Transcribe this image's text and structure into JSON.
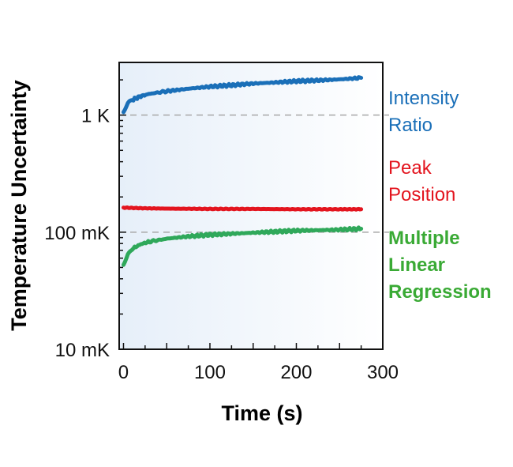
{
  "chart_data": {
    "type": "line",
    "title": "",
    "xlabel": "Time (s)",
    "ylabel": "Temperature Uncertainty",
    "xlim": [
      -5,
      300
    ],
    "ylim_log10_K": [
      -2,
      0.45
    ],
    "yscale": "log",
    "x_ticks": [
      0,
      100,
      200,
      300
    ],
    "x_tick_labels": [
      "0",
      "100",
      "200",
      "300"
    ],
    "y_ticks_K": [
      0.01,
      0.1,
      1
    ],
    "y_tick_labels": [
      "10 mK",
      "100 mK",
      "1 K"
    ],
    "reference_lines_K": [
      1,
      0.1
    ],
    "grid": false,
    "background": "gradient light blue to white",
    "legend_placement": "right (inline labels)",
    "series": [
      {
        "name": "Intensity Ratio",
        "label_lines": [
          "Intensity",
          "Ratio"
        ],
        "color": "#1a6fb8",
        "label_weight": "normal",
        "x": [
          0,
          5,
          10,
          20,
          30,
          50,
          75,
          100,
          125,
          150,
          175,
          200,
          225,
          250,
          275
        ],
        "values_K": [
          1.05,
          1.25,
          1.35,
          1.45,
          1.52,
          1.6,
          1.68,
          1.75,
          1.8,
          1.86,
          1.9,
          1.95,
          1.98,
          2.02,
          2.08
        ]
      },
      {
        "name": "Peak Position",
        "label_lines": [
          "Peak",
          "Position"
        ],
        "color": "#e3141e",
        "label_weight": "normal",
        "x": [
          0,
          25,
          50,
          100,
          150,
          200,
          250,
          275
        ],
        "values_K": [
          0.162,
          0.16,
          0.159,
          0.158,
          0.158,
          0.157,
          0.157,
          0.157
        ]
      },
      {
        "name": "Multiple Linear Regression",
        "label_lines": [
          "Multiple",
          "Linear",
          "Regression"
        ],
        "color": "#2fa85a",
        "label_color": "#3aaa35",
        "label_weight": "bold",
        "x": [
          0,
          5,
          10,
          20,
          30,
          50,
          75,
          100,
          125,
          150,
          175,
          200,
          225,
          250,
          275
        ],
        "values_K": [
          0.052,
          0.065,
          0.072,
          0.079,
          0.083,
          0.088,
          0.092,
          0.095,
          0.097,
          0.099,
          0.101,
          0.103,
          0.104,
          0.105,
          0.107
        ]
      }
    ]
  }
}
